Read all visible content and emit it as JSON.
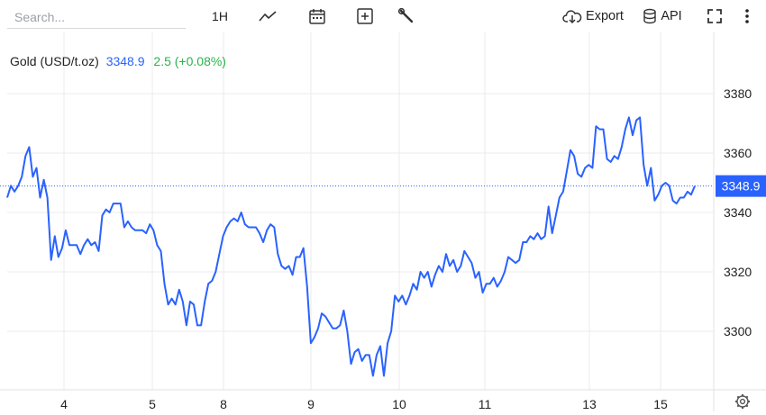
{
  "toolbar": {
    "search_placeholder": "Search...",
    "interval_label": "1H",
    "export_label": "Export",
    "api_label": "API"
  },
  "legend": {
    "symbol": "Gold (USD/t.oz)",
    "price": "3348.9",
    "change": "2.5 (+0.08%)"
  },
  "colors": {
    "line": "#2962ff",
    "change_positive": "#2bb24c",
    "grid": "#ebebeb",
    "price_tag_bg": "#2962ff"
  },
  "chart_data": {
    "type": "line",
    "title": "Gold (USD/t.oz)",
    "x_tick_labels": [
      "4",
      "5",
      "8",
      "9",
      "10",
      "11",
      "13",
      "15"
    ],
    "y_ticks": [
      3300,
      3320,
      3340,
      3360,
      3380
    ],
    "ylim": [
      3280,
      3396
    ],
    "last_price": 3348.9,
    "last_price_label": "3348.9",
    "grid": true,
    "series": [
      {
        "name": "Gold (USD/t.oz)",
        "interval": "1H",
        "values": [
          3345,
          3349,
          3347,
          3349,
          3352,
          3359,
          3362,
          3352,
          3355,
          3345,
          3351,
          3345,
          3324,
          3332,
          3325,
          3328,
          3334,
          3329,
          3329,
          3329,
          3326,
          3329,
          3331,
          3329,
          3330,
          3327,
          3339,
          3341,
          3340,
          3343,
          3343,
          3343,
          3335,
          3337,
          3335,
          3334,
          3334,
          3334,
          3333,
          3336,
          3334,
          3329,
          3327,
          3316,
          3309,
          3311,
          3309,
          3314,
          3310,
          3302,
          3310,
          3309,
          3302,
          3302,
          3310,
          3316,
          3317,
          3320,
          3326,
          3332,
          3335,
          3337,
          3338,
          3337,
          3340,
          3336,
          3335,
          3335,
          3335,
          3333,
          3330,
          3334,
          3336,
          3335,
          3326,
          3322,
          3321,
          3322,
          3319,
          3325,
          3325,
          3328,
          3315,
          3296,
          3298,
          3301,
          3306,
          3305,
          3303,
          3301,
          3301,
          3302,
          3307,
          3300,
          3289,
          3293,
          3294,
          3290,
          3292,
          3292,
          3285,
          3292,
          3295,
          3285,
          3296,
          3300,
          3312,
          3310,
          3312,
          3309,
          3312,
          3316,
          3314,
          3320,
          3318,
          3320,
          3315,
          3319,
          3322,
          3320,
          3326,
          3322,
          3324,
          3320,
          3322,
          3327,
          3325,
          3323,
          3318,
          3320,
          3313,
          3316,
          3316,
          3318,
          3315,
          3317,
          3320,
          3325,
          3324,
          3323,
          3324,
          3330,
          3330,
          3332,
          3331,
          3333,
          3331,
          3332,
          3342,
          3333,
          3339,
          3345,
          3347,
          3354,
          3361,
          3359,
          3353,
          3352,
          3355,
          3356,
          3355,
          3369,
          3368,
          3368,
          3358,
          3357,
          3359,
          3358,
          3362,
          3368,
          3372,
          3366,
          3371,
          3372,
          3356,
          3349,
          3355,
          3344,
          3346,
          3349,
          3350,
          3349,
          3344,
          3343,
          3345,
          3345,
          3347,
          3346,
          3348.9
        ]
      }
    ]
  }
}
